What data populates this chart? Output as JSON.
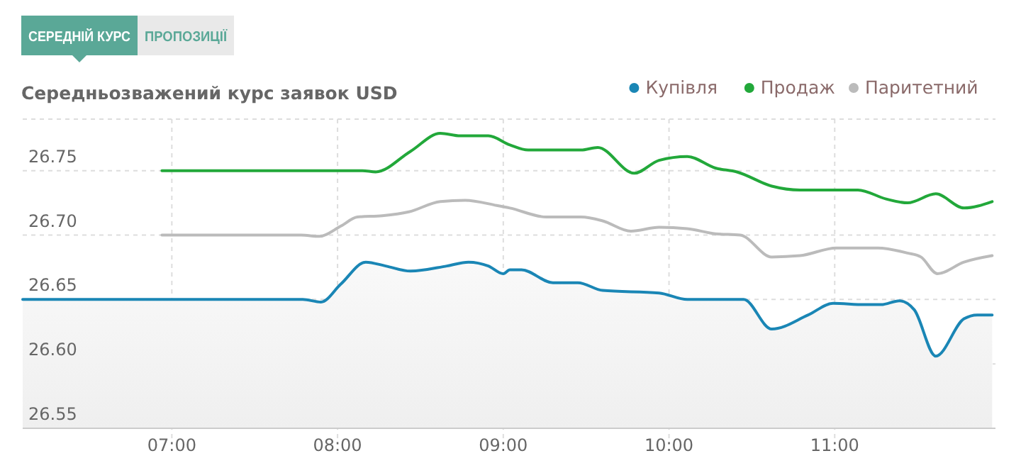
{
  "chart_data": {
    "type": "line",
    "title": "Середньозважений курс заявок USD",
    "annotations": [
      "СЕРЕДНІЙ КУРС",
      "ПРОПОЗИЦІЇ"
    ],
    "xlim": [
      6.1,
      11.97
    ],
    "xticks": [
      {
        "value": 7,
        "label": "07:00"
      },
      {
        "value": 8,
        "label": "08:00"
      },
      {
        "value": 9,
        "label": "09:00"
      },
      {
        "value": 10,
        "label": "10:00"
      },
      {
        "value": 11,
        "label": "11:00"
      }
    ],
    "ylim": [
      26.55,
      26.79
    ],
    "yticks": [
      {
        "value": 26.55,
        "label": "26.55"
      },
      {
        "value": 26.6,
        "label": "26.60"
      },
      {
        "value": 26.65,
        "label": "26.65"
      },
      {
        "value": 26.7,
        "label": "26.70"
      },
      {
        "value": 26.75,
        "label": "26.75"
      }
    ],
    "grid": true,
    "legend": "top right",
    "marker": "none",
    "line_style": "solid",
    "series": [
      {
        "name": "Купівля",
        "type": "area",
        "color": "#1a86b5",
        "x": [
          6.1,
          7.79,
          7.9,
          8.02,
          8.17,
          8.29,
          8.44,
          8.66,
          8.79,
          8.91,
          9.0,
          9.04,
          9.11,
          9.3,
          9.45,
          9.6,
          9.94,
          10.11,
          10.37,
          10.45,
          10.62,
          10.84,
          10.99,
          11.18,
          11.28,
          11.39,
          11.48,
          11.61,
          11.78,
          11.86,
          11.95
        ],
        "values": [
          26.65,
          26.65,
          26.648,
          26.662,
          26.679,
          26.676,
          26.672,
          26.676,
          26.679,
          26.676,
          26.67,
          26.673,
          26.673,
          26.663,
          26.663,
          26.657,
          26.655,
          26.65,
          26.65,
          26.65,
          26.627,
          26.638,
          26.647,
          26.646,
          26.646,
          26.649,
          26.642,
          26.606,
          26.635,
          26.638,
          26.638
        ]
      },
      {
        "name": "Продаж",
        "color": "#22a83a",
        "x": [
          6.94,
          8.15,
          8.23,
          8.44,
          8.62,
          8.74,
          8.91,
          9.04,
          9.15,
          9.47,
          9.57,
          9.79,
          9.94,
          10.11,
          10.28,
          10.41,
          10.62,
          10.79,
          11.14,
          11.31,
          11.44,
          11.61,
          11.78,
          11.95
        ],
        "values": [
          26.75,
          26.75,
          26.749,
          26.765,
          26.779,
          26.777,
          26.777,
          26.77,
          26.766,
          26.766,
          26.768,
          26.748,
          26.758,
          26.761,
          26.752,
          26.749,
          26.738,
          26.735,
          26.735,
          26.728,
          26.725,
          26.732,
          26.721,
          26.726
        ]
      },
      {
        "name": "Паритетний",
        "color": "#bbbbbb",
        "x": [
          6.94,
          7.78,
          7.89,
          8.02,
          8.12,
          8.27,
          8.43,
          8.62,
          8.77,
          8.96,
          9.04,
          9.26,
          9.47,
          9.6,
          9.77,
          9.94,
          10.11,
          10.28,
          10.43,
          10.62,
          10.79,
          11.01,
          11.26,
          11.44,
          11.52,
          11.62,
          11.78,
          11.95
        ],
        "values": [
          26.7,
          26.7,
          26.699,
          26.707,
          26.714,
          26.715,
          26.718,
          26.726,
          26.727,
          26.723,
          26.721,
          26.714,
          26.714,
          26.711,
          26.703,
          26.706,
          26.705,
          26.701,
          26.7,
          26.683,
          26.684,
          26.69,
          26.69,
          26.686,
          26.683,
          26.67,
          26.679,
          26.684
        ]
      }
    ]
  }
}
